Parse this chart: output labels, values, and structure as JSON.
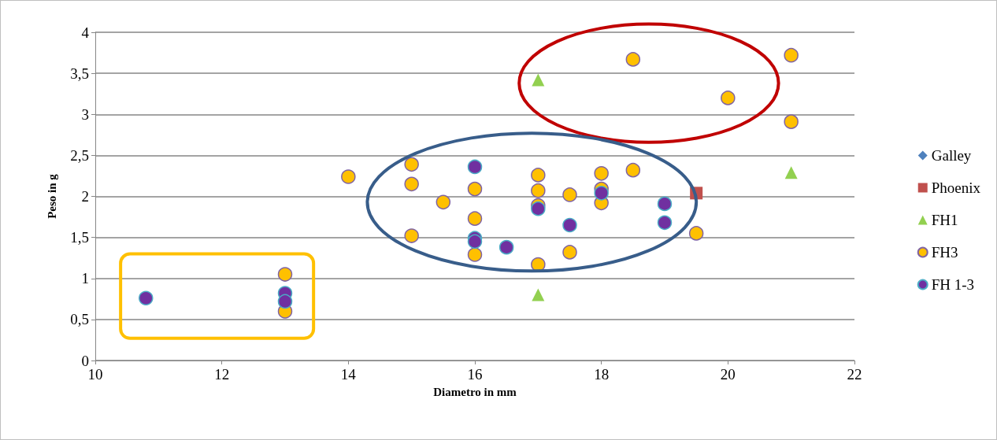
{
  "chart_data": {
    "type": "scatter",
    "xlabel": "Diametro in mm",
    "ylabel": "Peso in g",
    "xlim": [
      10,
      22
    ],
    "xticks": [
      10,
      12,
      14,
      16,
      18,
      20,
      22
    ],
    "ylim": [
      0,
      4
    ],
    "yticks": [
      0,
      {
        "value": 0.5,
        "label": "0,5"
      },
      1,
      {
        "value": 1.5,
        "label": "1,5"
      },
      2,
      {
        "value": 2.5,
        "label": "2,5"
      },
      3,
      {
        "value": 3.5,
        "label": "3,5"
      },
      4
    ],
    "grid": "y",
    "legend": "right",
    "series": [
      {
        "name": "Galley",
        "color": "#4f81bd",
        "marker": "diamond"
      },
      {
        "name": "Phoenix",
        "color": "#c0504d",
        "marker": "square",
        "x": [
          19.5
        ],
        "values": [
          2.04
        ]
      },
      {
        "name": "FH1",
        "color": "#92d050",
        "marker": "triangle",
        "x": [
          17,
          21,
          17
        ],
        "values": [
          3.42,
          2.29,
          0.8
        ]
      },
      {
        "name": "FH3",
        "color": "#ffc000",
        "marker": "circle",
        "x": [
          14,
          15,
          15,
          15,
          15.5,
          16,
          16,
          16,
          17,
          17,
          17,
          17,
          17.5,
          17.5,
          18,
          18,
          18,
          18.5,
          18.5,
          19.5,
          20,
          21,
          21,
          13,
          13
        ],
        "values": [
          2.24,
          2.39,
          2.15,
          1.52,
          1.93,
          2.09,
          1.73,
          1.29,
          2.26,
          2.07,
          1.89,
          1.17,
          2.02,
          1.32,
          2.28,
          2.09,
          1.92,
          2.32,
          3.67,
          1.55,
          3.2,
          3.72,
          2.91,
          1.05,
          0.6
        ]
      },
      {
        "name": "FH 1-3",
        "color": "#7030a0",
        "marker": "circle",
        "x": [
          10.8,
          13,
          13,
          16,
          16,
          16,
          16.5,
          17,
          17.5,
          18,
          19,
          19
        ],
        "values": [
          0.76,
          0.82,
          0.72,
          2.36,
          1.49,
          1.45,
          1.38,
          1.85,
          1.65,
          2.04,
          1.91,
          1.68
        ]
      }
    ]
  }
}
